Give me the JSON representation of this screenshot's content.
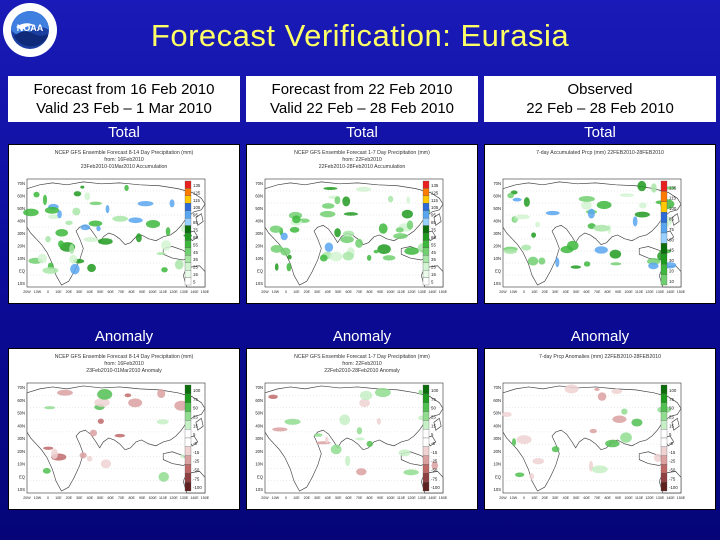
{
  "title": "Forecast Verification: Eurasia",
  "logo": {
    "text": "NOAA",
    "ring_text": "NATIONAL OCEANIC AND ATMOSPHERIC ADMINISTRATION · U.S. DEPARTMENT OF COMMERCE"
  },
  "columns": [
    {
      "header_line1": "Forecast from 16 Feb 2010",
      "header_line2": "Valid 23 Feb – 1 Mar 2010",
      "total_label": "Total",
      "anomaly_label": "Anomaly",
      "total_map": {
        "title1": "NCEP GFS Ensemble Forecast 8-14 Day Precipitation (mm)",
        "title2": "from: 16Feb2010",
        "title3": "23Feb2010-01Mar2010 Accumulation"
      },
      "anomaly_map": {
        "title1": "NCEP GFS Ensemble Forecast 8-14 Day Precipitation (mm)",
        "title2": "from: 16Feb2010",
        "title3": "23Feb2010-01Mar2010 Anomaly"
      }
    },
    {
      "header_line1": "Forecast from 22 Feb 2010",
      "header_line2": "Valid 22 Feb – 28 Feb 2010",
      "total_label": "Total",
      "anomaly_label": "Anomaly",
      "total_map": {
        "title1": "NCEP GFS Ensemble Forecast 1-7 Day Precipitation (mm)",
        "title2": "from: 22Feb2010",
        "title3": "22Feb2010-28Feb2010 Accumulation"
      },
      "anomaly_map": {
        "title1": "NCEP GFS Ensemble Forecast 1-7 Day Precipitation (mm)",
        "title2": "from: 22Feb2010",
        "title3": "22Feb2010-28Feb2010 Anomaly"
      }
    },
    {
      "header_line1": "Observed",
      "header_line2": "22 Feb – 28 Feb 2010",
      "total_label": "Total",
      "anomaly_label": "Anomaly",
      "total_map": {
        "title1": "7-day Accumulated Prcp (mm) 22FEB2010-28FEB2010",
        "title2": "",
        "title3": ""
      },
      "anomaly_map": {
        "title1": "7-day Prcp Anomalies (mm) 22FEB2010-28FEB2010",
        "title2": "",
        "title3": ""
      }
    }
  ],
  "lat_labels": [
    "70N",
    "60N",
    "50N",
    "40N",
    "30N",
    "20N",
    "10N",
    "EQ",
    "10S"
  ],
  "lon_labels": [
    "20W",
    "10W",
    "0",
    "10E",
    "20E",
    "30E",
    "40E",
    "50E",
    "60E",
    "70E",
    "80E",
    "90E",
    "100E",
    "110E",
    "120E",
    "130E",
    "140E",
    "150E"
  ],
  "total_scale": [
    "135",
    "125",
    "115",
    "105",
    "95",
    "85",
    "75",
    "65",
    "55",
    "45",
    "35",
    "25",
    "15",
    "5"
  ],
  "total_scale_obs": [
    "135",
    "115",
    "100",
    "85",
    "75",
    "60",
    "45",
    "30",
    "20",
    "10"
  ],
  "anomaly_scale": [
    "100",
    "75",
    "50",
    "25",
    "15",
    "5",
    "-5",
    "-15",
    "-25",
    "-50",
    "-75",
    "-100"
  ],
  "colors": {
    "title": "#ffff66",
    "background": "#0c0c9a",
    "total_colors": [
      "#e82020",
      "#ff7a00",
      "#ffc800",
      "#2c6bd8",
      "#58a6f0",
      "#98d0ff",
      "#0a6e0a",
      "#1e9a1e",
      "#3cb83c",
      "#70d070",
      "#a8e6a8",
      "#d2f4d2",
      "#eafbea",
      "#ffffff"
    ],
    "anomaly_colors": [
      "#0a6e0a",
      "#1e9a1e",
      "#50c050",
      "#90dd90",
      "#c6f0c6",
      "#ffffff",
      "#ffffff",
      "#f0d2d2",
      "#dba0a0",
      "#c06868",
      "#904040",
      "#602020"
    ]
  }
}
